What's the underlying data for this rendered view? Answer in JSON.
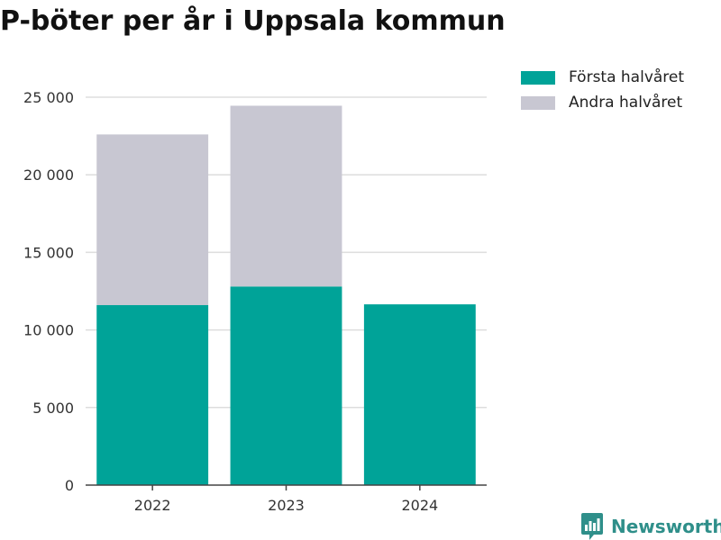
{
  "chart_data": {
    "type": "bar",
    "stacked": true,
    "title": "P-böter per år i Uppsala kommun",
    "xlabel": "",
    "ylabel": "",
    "categories": [
      "2022",
      "2023",
      "2024"
    ],
    "series": [
      {
        "name": "Första halvåret",
        "color": "#00a398",
        "values": [
          11600,
          12800,
          11650
        ]
      },
      {
        "name": "Andra halvåret",
        "color": "#c8c7d2",
        "values": [
          11000,
          11650,
          0
        ]
      }
    ],
    "ylim": [
      0,
      25000
    ],
    "yticks": [
      0,
      5000,
      10000,
      15000,
      20000,
      25000
    ],
    "ytick_labels": [
      "0",
      "5 000",
      "10 000",
      "15 000",
      "20 000",
      "25 000"
    ],
    "grid": true,
    "legend_position": "top-right"
  },
  "branding": {
    "name": "Newsworthy",
    "logo_icon": "bar-chart-speech-bubble-icon",
    "color": "#2f8f8a"
  }
}
